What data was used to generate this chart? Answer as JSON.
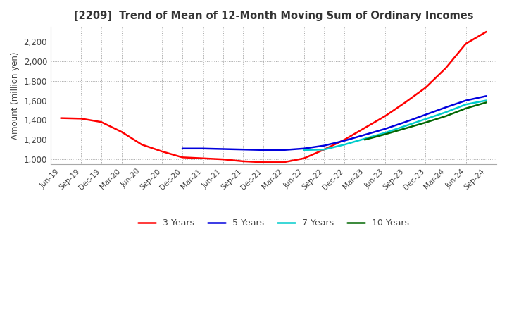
{
  "title": "[2209]  Trend of Mean of 12-Month Moving Sum of Ordinary Incomes",
  "ylabel": "Amount (million yen)",
  "background_color": "#ffffff",
  "plot_bg_color": "#ffffff",
  "grid_color": "#aaaaaa",
  "ylim": [
    950,
    2350
  ],
  "yticks": [
    1000,
    1200,
    1400,
    1600,
    1800,
    2000,
    2200
  ],
  "x_labels": [
    "Jun-19",
    "Sep-19",
    "Dec-19",
    "Mar-20",
    "Jun-20",
    "Sep-20",
    "Dec-20",
    "Mar-21",
    "Jun-21",
    "Sep-21",
    "Dec-21",
    "Mar-22",
    "Jun-22",
    "Sep-22",
    "Dec-22",
    "Mar-23",
    "Jun-23",
    "Sep-23",
    "Dec-23",
    "Mar-24",
    "Jun-24",
    "Sep-24"
  ],
  "series": {
    "3 Years": {
      "color": "#ff0000",
      "data": [
        1420,
        1415,
        1380,
        1280,
        1150,
        1080,
        1020,
        1010,
        1000,
        980,
        970,
        970,
        1010,
        1100,
        1200,
        1320,
        1440,
        1580,
        1730,
        1930,
        2180,
        2300
      ]
    },
    "5 Years": {
      "color": "#0000dd",
      "data": [
        null,
        null,
        null,
        null,
        null,
        null,
        1110,
        1110,
        1105,
        1100,
        1095,
        1095,
        1110,
        1140,
        1190,
        1250,
        1310,
        1380,
        1455,
        1530,
        1600,
        1645
      ]
    },
    "7 Years": {
      "color": "#00cccc",
      "data": [
        null,
        null,
        null,
        null,
        null,
        null,
        null,
        null,
        null,
        null,
        null,
        null,
        1095,
        1100,
        1150,
        1210,
        1270,
        1340,
        1410,
        1480,
        1560,
        1600
      ]
    },
    "10 Years": {
      "color": "#006600",
      "data": [
        null,
        null,
        null,
        null,
        null,
        null,
        null,
        null,
        null,
        null,
        null,
        null,
        null,
        null,
        null,
        1200,
        1255,
        1315,
        1375,
        1440,
        1520,
        1580
      ]
    }
  },
  "legend_order": [
    "3 Years",
    "5 Years",
    "7 Years",
    "10 Years"
  ]
}
